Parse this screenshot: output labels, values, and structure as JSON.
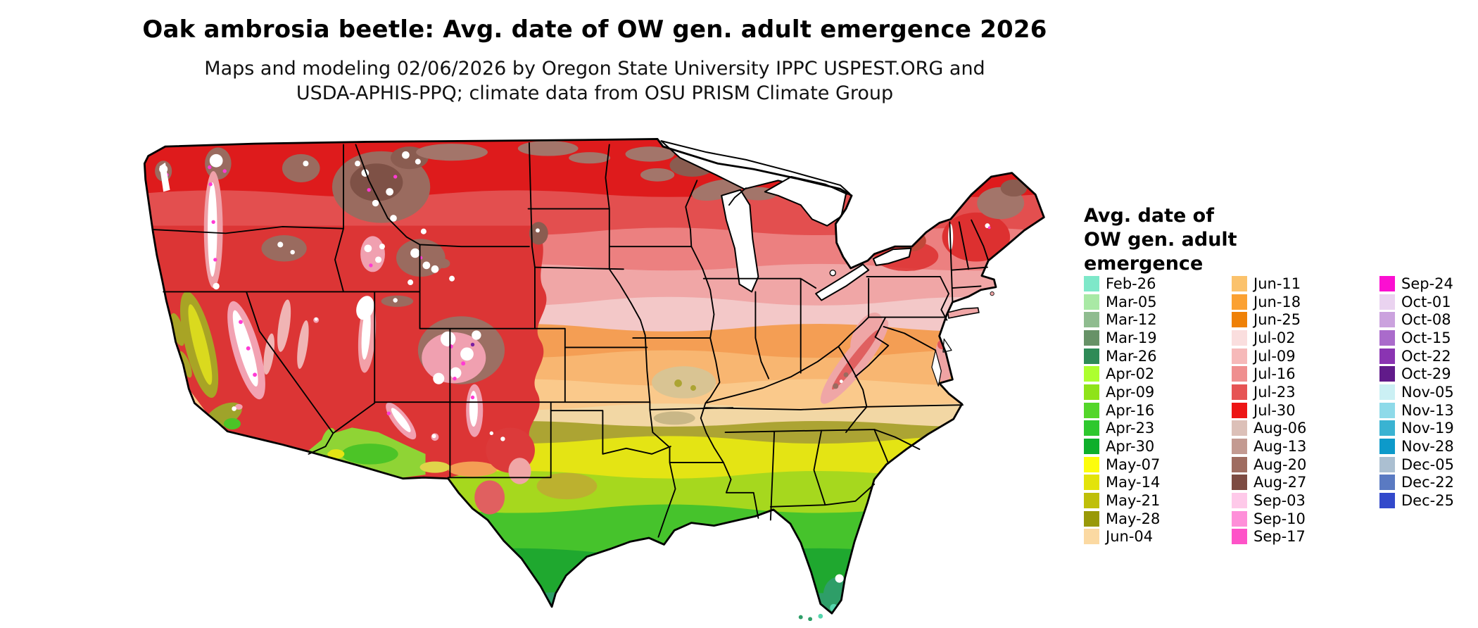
{
  "title": "Oak ambrosia beetle: Avg. date of OW gen. adult emergence 2026",
  "subtitle_line1": "Maps and modeling 02/06/2026 by Oregon State University IPPC USPEST.ORG and",
  "subtitle_line2": "USDA-APHIS-PPQ; climate data from OSU PRISM Climate Group",
  "legend": {
    "title_lines": [
      "Avg. date of",
      "OW gen. adult",
      "emergence"
    ],
    "columns": [
      {
        "entries": [
          {
            "label": "Feb-26",
            "color": "#7EE8C9"
          },
          {
            "label": "Mar-05",
            "color": "#A9E9A5"
          },
          {
            "label": "Mar-12",
            "color": "#8FBC8F"
          },
          {
            "label": "Mar-19",
            "color": "#679267"
          },
          {
            "label": "Mar-26",
            "color": "#2E8B57"
          },
          {
            "label": "Apr-02",
            "color": "#ADFF2F"
          },
          {
            "label": "Apr-09",
            "color": "#8FE319"
          },
          {
            "label": "Apr-16",
            "color": "#54D62A"
          },
          {
            "label": "Apr-23",
            "color": "#2EC82E"
          },
          {
            "label": "Apr-30",
            "color": "#0FAF2B"
          },
          {
            "label": "May-07",
            "color": "#FDFD0C"
          },
          {
            "label": "May-14",
            "color": "#E3E30A"
          },
          {
            "label": "May-21",
            "color": "#BFBF09"
          },
          {
            "label": "May-28",
            "color": "#999907"
          },
          {
            "label": "Jun-04",
            "color": "#FBD9A2"
          }
        ]
      },
      {
        "entries": [
          {
            "label": "Jun-11",
            "color": "#FBC26C"
          },
          {
            "label": "Jun-18",
            "color": "#FBA133"
          },
          {
            "label": "Jun-25",
            "color": "#EF8107"
          },
          {
            "label": "Jul-02",
            "color": "#FADEDE"
          },
          {
            "label": "Jul-09",
            "color": "#F6B9B9"
          },
          {
            "label": "Jul-16",
            "color": "#EF8F8F"
          },
          {
            "label": "Jul-23",
            "color": "#E65454"
          },
          {
            "label": "Jul-30",
            "color": "#ED1515"
          },
          {
            "label": "Aug-06",
            "color": "#DCC0B8"
          },
          {
            "label": "Aug-13",
            "color": "#C39A91"
          },
          {
            "label": "Aug-20",
            "color": "#9F6C60"
          },
          {
            "label": "Aug-27",
            "color": "#7D4B42"
          },
          {
            "label": "Sep-03",
            "color": "#FEC9E9"
          },
          {
            "label": "Sep-10",
            "color": "#FE8FD9"
          },
          {
            "label": "Sep-17",
            "color": "#FE53C8"
          }
        ]
      },
      {
        "entries": [
          {
            "label": "Sep-24",
            "color": "#FB0FD1"
          },
          {
            "label": "Oct-01",
            "color": "#EAD3F0"
          },
          {
            "label": "Oct-08",
            "color": "#CBA2DE"
          },
          {
            "label": "Oct-15",
            "color": "#AA6BCB"
          },
          {
            "label": "Oct-22",
            "color": "#8A34B2"
          },
          {
            "label": "Oct-29",
            "color": "#611B8A"
          },
          {
            "label": "Nov-05",
            "color": "#CBF0F4"
          },
          {
            "label": "Nov-13",
            "color": "#8EDAE9"
          },
          {
            "label": "Nov-19",
            "color": "#3AB3D2"
          },
          {
            "label": "Nov-28",
            "color": "#0D9ACA"
          },
          {
            "label": "Dec-05",
            "color": "#ABBFD1"
          },
          {
            "label": "Dec-22",
            "color": "#5A7AC2"
          },
          {
            "label": "Dec-25",
            "color": "#3249CB"
          }
        ]
      }
    ]
  }
}
